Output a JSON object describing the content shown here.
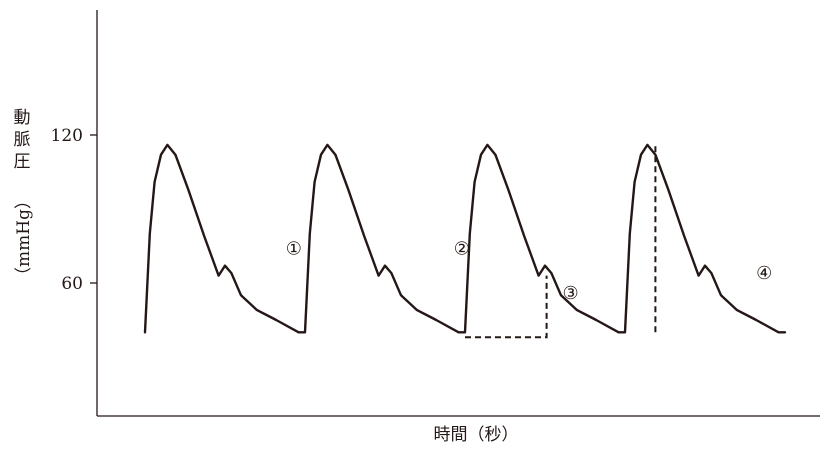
{
  "chart_data": {
    "type": "line",
    "title": "",
    "xlabel": "時間（秒）",
    "ylabel_chars": [
      "動",
      "脈",
      "圧"
    ],
    "ylabel_unit": "（mmHg）",
    "y_ticks": [
      {
        "value": 120,
        "label": "120"
      },
      {
        "value": 60,
        "label": "60"
      }
    ],
    "ylim": [
      13,
      180
    ],
    "xlim": [
      0,
      4.6
    ],
    "x_ticks": [],
    "grid": false,
    "beats": 4,
    "beat_period": 1.0,
    "waveform_one_beat": [
      {
        "t": 0.0,
        "p": 40
      },
      {
        "t": 0.03,
        "p": 80
      },
      {
        "t": 0.06,
        "p": 101
      },
      {
        "t": 0.1,
        "p": 112
      },
      {
        "t": 0.14,
        "p": 116
      },
      {
        "t": 0.19,
        "p": 112
      },
      {
        "t": 0.27,
        "p": 98
      },
      {
        "t": 0.37,
        "p": 79
      },
      {
        "t": 0.46,
        "p": 63
      },
      {
        "t": 0.5,
        "p": 67
      },
      {
        "t": 0.54,
        "p": 64
      },
      {
        "t": 0.6,
        "p": 55
      },
      {
        "t": 0.7,
        "p": 49
      },
      {
        "t": 0.82,
        "p": 45
      },
      {
        "t": 0.96,
        "p": 40
      },
      {
        "t": 1.0,
        "p": 40
      }
    ],
    "annotations": [
      {
        "label": "①",
        "t": 0.93,
        "p": 74
      },
      {
        "label": "②",
        "t": 1.98,
        "p": 74
      },
      {
        "label": "③",
        "t": 2.66,
        "p": 56
      },
      {
        "label": "④",
        "t": 3.87,
        "p": 64
      }
    ],
    "dashed_guides": [
      {
        "points": [
          {
            "t": 2.0,
            "p": 38
          },
          {
            "t": 2.51,
            "p": 38
          },
          {
            "t": 2.51,
            "p": 63
          }
        ]
      },
      {
        "points": [
          {
            "t": 3.19,
            "p": 40
          },
          {
            "t": 3.19,
            "p": 116
          }
        ]
      }
    ]
  }
}
